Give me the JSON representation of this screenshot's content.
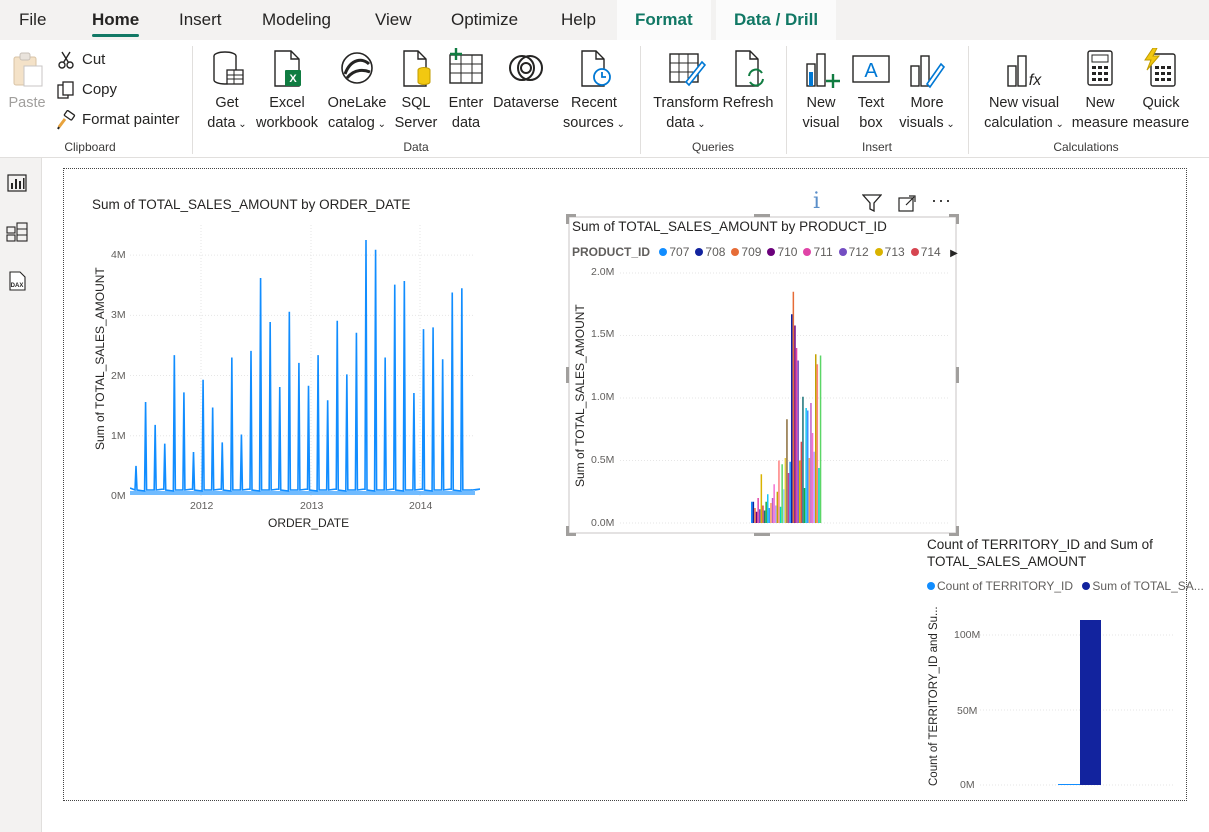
{
  "menu": {
    "tabs": [
      {
        "label": "File"
      },
      {
        "label": "Home"
      },
      {
        "label": "Insert"
      },
      {
        "label": "Modeling"
      },
      {
        "label": "View"
      },
      {
        "label": "Optimize"
      },
      {
        "label": "Help"
      },
      {
        "label": "Format"
      },
      {
        "label": "Data / Drill"
      }
    ]
  },
  "ribbon": {
    "clipboard": {
      "paste": "Paste",
      "cut": "Cut",
      "copy": "Copy",
      "format_painter": "Format painter",
      "label": "Clipboard"
    },
    "data": {
      "get_data": [
        "Get",
        "data"
      ],
      "excel": [
        "Excel",
        "workbook"
      ],
      "onelake": [
        "OneLake",
        "catalog"
      ],
      "sql": [
        "SQL",
        "Server"
      ],
      "enter": [
        "Enter",
        "data"
      ],
      "dataverse": [
        "Dataverse"
      ],
      "recent": [
        "Recent",
        "sources"
      ],
      "label": "Data"
    },
    "queries": {
      "transform": [
        "Transform",
        "data"
      ],
      "refresh": [
        "Refresh"
      ],
      "label": "Queries"
    },
    "insert": {
      "new_visual": [
        "New",
        "visual"
      ],
      "text_box": [
        "Text",
        "box"
      ],
      "more_visuals": [
        "More",
        "visuals"
      ],
      "label": "Insert"
    },
    "calculations": {
      "new_visual_calc": [
        "New visual",
        "calculation"
      ],
      "new_measure": [
        "New",
        "measure"
      ],
      "quick_measure": [
        "Quick",
        "measure"
      ],
      "label": "Calculations"
    }
  },
  "visuals": {
    "line": {
      "title": "Sum of TOTAL_SALES_AMOUNT by ORDER_DATE",
      "ylabel": "Sum of TOTAL_SALES_AMOUNT",
      "xlabel": "ORDER_DATE",
      "yticks": [
        "0M",
        "1M",
        "2M",
        "3M",
        "4M"
      ],
      "xticks": [
        "2012",
        "2013",
        "2014"
      ],
      "color": "#118DFF"
    },
    "bars": {
      "title": "Sum of TOTAL_SALES_AMOUNT by PRODUCT_ID",
      "legend_title": "PRODUCT_ID",
      "legend": [
        {
          "name": "707",
          "color": "#118DFF"
        },
        {
          "name": "708",
          "color": "#12239E"
        },
        {
          "name": "709",
          "color": "#E66C37"
        },
        {
          "name": "710",
          "color": "#6B007B"
        },
        {
          "name": "711",
          "color": "#E044A7"
        },
        {
          "name": "712",
          "color": "#744EC2"
        },
        {
          "name": "713",
          "color": "#D9B300"
        },
        {
          "name": "714",
          "color": "#D64550"
        }
      ],
      "ylabel": "Sum of TOTAL_SALES_AMOUNT",
      "yticks": [
        "0.0M",
        "0.5M",
        "1.0M",
        "1.5M",
        "2.0M"
      ]
    },
    "combo": {
      "title_line1": "Count of TERRITORY_ID and Sum of",
      "title_line2": "TOTAL_SALES_AMOUNT",
      "legend": [
        {
          "name": "Count of TERRITORY_ID",
          "color": "#118DFF"
        },
        {
          "name": "Sum of TOTAL_SA...",
          "color": "#12239E"
        }
      ],
      "ylabel": "Count of TERRITORY_ID and Su...",
      "yticks": [
        "0M",
        "50M",
        "100M"
      ]
    }
  },
  "chart_data": [
    {
      "type": "line",
      "title": "Sum of TOTAL_SALES_AMOUNT by ORDER_DATE",
      "xlabel": "ORDER_DATE",
      "ylabel": "Sum of TOTAL_SALES_AMOUNT",
      "ylim": [
        0,
        4500000
      ],
      "x": [
        "2011-06",
        "2011-07",
        "2011-08",
        "2011-09",
        "2011-10",
        "2011-11",
        "2011-12",
        "2012-01",
        "2012-02",
        "2012-03",
        "2012-04",
        "2012-05",
        "2012-06",
        "2012-07",
        "2012-08",
        "2012-09",
        "2012-10",
        "2012-11",
        "2012-12",
        "2013-01",
        "2013-02",
        "2013-03",
        "2013-04",
        "2013-05",
        "2013-06",
        "2013-07",
        "2013-08",
        "2013-09",
        "2013-10",
        "2013-11",
        "2013-12",
        "2014-01",
        "2014-02",
        "2014-03",
        "2014-04",
        "2014-05"
      ],
      "peaks": [
        500000,
        1560000,
        1180000,
        870000,
        2340000,
        1720000,
        730000,
        1930000,
        1470000,
        890000,
        2300000,
        1020000,
        2410000,
        3620000,
        2890000,
        1810000,
        3060000,
        2210000,
        1830000,
        2340000,
        1590000,
        2910000,
        2020000,
        2710000,
        4250000,
        4090000,
        2300000,
        3510000,
        3570000,
        1710000,
        2770000,
        2800000,
        2270000,
        3380000,
        3450000,
        100000
      ]
    },
    {
      "type": "bar",
      "title": "Sum of TOTAL_SALES_AMOUNT by PRODUCT_ID",
      "ylabel": "Sum of TOTAL_SALES_AMOUNT",
      "ylim": [
        0,
        2000000
      ],
      "categories_note": "PRODUCT_ID legend: 707-714 and more",
      "values_approx": [
        170000,
        170000,
        120000,
        90000,
        200000,
        110000,
        390000,
        140000,
        100000,
        170000,
        230000,
        120000,
        160000,
        200000,
        310000,
        140000,
        250000,
        500000,
        130000,
        470000,
        270000,
        520000,
        830000,
        400000,
        490000,
        1670000,
        1850000,
        1580000,
        1400000,
        1300000,
        500000,
        650000,
        1010000,
        280000,
        920000,
        900000,
        520000,
        960000,
        720000,
        570000,
        1350000,
        1270000,
        440000,
        1340000
      ]
    },
    {
      "type": "bar",
      "title": "Count of TERRITORY_ID and Sum of TOTAL_SALES_AMOUNT",
      "ylabel": "Count of TERRITORY_ID and Su...",
      "ylim": [
        0,
        125000000
      ],
      "series": [
        {
          "name": "Count of TERRITORY_ID",
          "values": [
            0
          ]
        },
        {
          "name": "Sum of TOTAL_SA...",
          "values": [
            110000000
          ]
        }
      ]
    }
  ]
}
